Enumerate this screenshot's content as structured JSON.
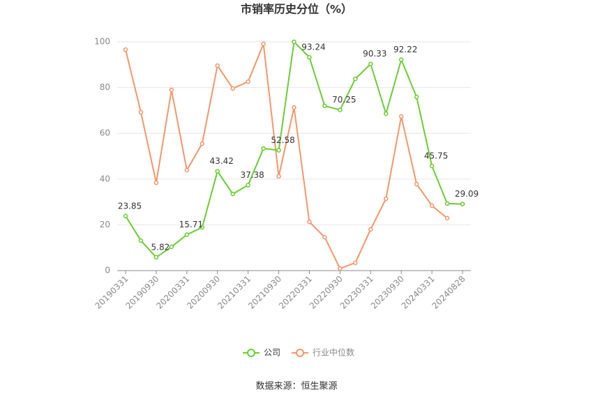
{
  "chart_data": {
    "type": "line",
    "title": "市销率历史分位（%）",
    "categories": [
      "20190331",
      null,
      "20190930",
      null,
      "20200331",
      null,
      "20200930",
      null,
      "20210331",
      null,
      "20210930",
      null,
      "20220331",
      null,
      "20220930",
      null,
      "20230331",
      null,
      "20230930",
      null,
      "20240331",
      null,
      "20240828"
    ],
    "series": [
      {
        "name": "公司",
        "color": "#6acc33",
        "values": [
          23.85,
          13.1,
          5.82,
          10.4,
          15.71,
          18.9,
          43.42,
          33.5,
          37.38,
          53.4,
          52.58,
          100,
          93.24,
          72,
          70.25,
          83.8,
          90.33,
          68.6,
          92.22,
          75.9,
          45.75,
          29.3,
          29.09
        ],
        "value_labels": [
          "23.85",
          null,
          "5.82",
          null,
          "15.71",
          null,
          "43.42",
          null,
          "37.38",
          null,
          "52.58",
          null,
          "93.24",
          null,
          "70.25",
          null,
          "90.33",
          null,
          "92.22",
          null,
          "45.75",
          null,
          "29.09"
        ]
      },
      {
        "name": "行业中位数",
        "color": "#f4966a",
        "values": [
          96.6,
          69.2,
          38.4,
          79,
          43.9,
          55.5,
          89.6,
          79.6,
          82.6,
          99.1,
          41.2,
          71.3,
          21.3,
          14.6,
          0.9,
          3.4,
          18,
          31.4,
          67.4,
          37.8,
          28.4,
          22.9,
          null
        ]
      }
    ],
    "ylim": [
      0,
      100
    ],
    "yticks": [
      0,
      20,
      40,
      60,
      80,
      100
    ],
    "grid": true,
    "legend": "bottom",
    "source": "数据来源：恒生聚源"
  }
}
